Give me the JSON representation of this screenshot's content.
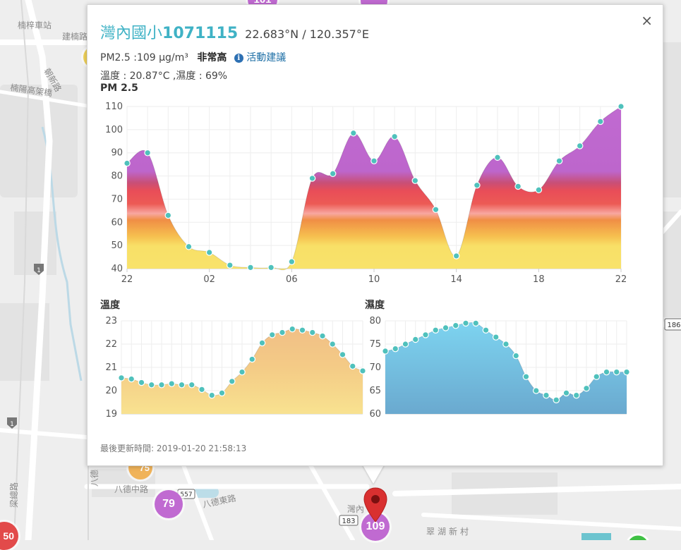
{
  "map": {
    "labels": [
      "楠梓車站",
      "建楠路",
      "朝新路",
      "楠陽高架橋",
      "八德中路",
      "八德東路",
      "翠湖新村",
      "灣內",
      "梁總路",
      "八德"
    ],
    "route_shields": [
      "1",
      "1",
      "186",
      "183",
      "557"
    ],
    "markers": [
      {
        "value": "101",
        "color": "#c06ad1"
      },
      {
        "value": "79",
        "color": "#c06ad1"
      },
      {
        "value": "109",
        "color": "#c06ad1"
      },
      {
        "value": "50",
        "color": "#e24a4a"
      },
      {
        "value": "75",
        "color": "#f0b35a"
      }
    ],
    "pin_icon": "map-pin-icon"
  },
  "popup": {
    "close_label": "×",
    "site_name": "灣內國小",
    "site_id": "1071115",
    "coords": "22.683°N / 120.357°E",
    "pm25_text": "PM2.5 :109 μg/m³",
    "level": "非常高",
    "advice_icon": "info-icon",
    "advice_label": "活動建議",
    "temp_humidity_text": "溫度 : 20.87°C ,濕度 : 69%",
    "footer": "最後更新時間: 2019-01-20 21:58:13"
  },
  "chart_data": [
    {
      "type": "area",
      "title": "PM 2.5",
      "x_labels": [
        "22",
        "02",
        "06",
        "10",
        "14",
        "18",
        "22"
      ],
      "values": [
        85.5,
        90,
        63,
        49.5,
        47,
        41.5,
        40.5,
        40.5,
        43,
        79,
        81,
        98.5,
        86.5,
        97,
        78,
        65.5,
        45.5,
        76,
        88,
        75.5,
        74,
        86.5,
        93,
        103.5,
        110
      ],
      "ylim": [
        40,
        110
      ],
      "yticks": [
        40,
        50,
        60,
        70,
        80,
        90,
        100,
        110
      ],
      "grid": true
    },
    {
      "type": "area",
      "title": "溫度",
      "values": [
        20.55,
        20.5,
        20.35,
        20.25,
        20.25,
        20.3,
        20.25,
        20.25,
        20.05,
        19.8,
        19.9,
        20.4,
        20.8,
        21.35,
        22.05,
        22.4,
        22.5,
        22.65,
        22.6,
        22.5,
        22.35,
        22.0,
        21.55,
        21.05,
        20.85
      ],
      "ylim": [
        19,
        23
      ],
      "yticks": [
        19,
        20,
        21,
        22,
        23
      ],
      "grid": true
    },
    {
      "type": "area",
      "title": "濕度",
      "values": [
        73.5,
        74,
        75,
        76,
        77,
        78,
        78.5,
        79,
        79.5,
        79.5,
        78,
        76.5,
        75,
        72.5,
        68,
        65,
        64,
        63,
        64.5,
        64,
        65.5,
        68,
        69,
        69,
        69
      ],
      "ylim": [
        60,
        80
      ],
      "yticks": [
        60,
        65,
        70,
        75,
        80
      ],
      "grid": true
    }
  ]
}
